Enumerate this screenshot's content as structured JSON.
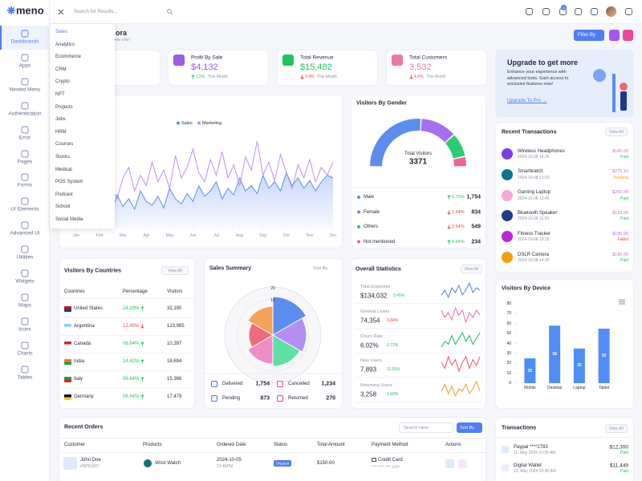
{
  "brand": "meno",
  "search_placeholder": "Search for Results...",
  "cart_badge": 4,
  "sidebar": [
    "Dashboards",
    "Apps",
    "Nested Menu",
    "Authentication",
    "Error",
    "Pages",
    "Forms",
    "UI Elements",
    "Advanced UI",
    "Utilities",
    "Widgets",
    "Maps",
    "Icons",
    "Charts",
    "Tables"
  ],
  "dashboard_menu": [
    "Sales",
    "Analytics",
    "Ecommerce",
    "CRM",
    "Crypto",
    "NFT",
    "Projects",
    "Jobs",
    "HRM",
    "Courses",
    "Stocks",
    "Medical",
    "POS System",
    "Podcast",
    "School",
    "Social Media"
  ],
  "header": {
    "title": "ora",
    "subtitle": "ew one!",
    "filter_button": "Filter By"
  },
  "stat_cards": [
    {
      "title": "Profit By Sale",
      "value": "$4,132",
      "change": "1.5%",
      "period": "This Month",
      "trend": "up",
      "color": "#9b5de5"
    },
    {
      "title": "Total Revenue",
      "value": "$15,482",
      "change": "3.4%",
      "period": "This Month",
      "trend": "down",
      "color": "#22c55e"
    },
    {
      "title": "Total Customers",
      "value": "3,532",
      "change": "4.5%",
      "period": "This Month",
      "trend": "down",
      "color": "#e879a6"
    }
  ],
  "upgrade": {
    "title": "Upgrade to get more",
    "text": "Enhance your experience with advanced tools. Gain access to exclusive features now!",
    "link": "Upgrade To Pro →"
  },
  "recent_transactions": {
    "title": "Recent Transactions",
    "view_all": "View All",
    "items": [
      {
        "name": "Wireless Headphones",
        "time": "2024-10-08 14:35",
        "amount": "$180.00",
        "status": "Paid"
      },
      {
        "name": "Smartwatch",
        "time": "2024-10-08 13:20",
        "amount": "$275.10",
        "status": "Pending"
      },
      {
        "name": "Gaming Laptop",
        "time": "2024-10-08 12:45",
        "amount": "$250.00",
        "status": "Paid"
      },
      {
        "name": "Bluetooth Speaker",
        "time": "2024-10-08 11:30",
        "amount": "$120.00",
        "status": "Paid"
      },
      {
        "name": "Fitness Tracker",
        "time": "2024-10-08 10:15",
        "amount": "$180.00",
        "status": "Failed"
      },
      {
        "name": "DSLR Camera",
        "time": "2024-10-08 14:35",
        "amount": "$180.00",
        "status": "Paid"
      }
    ]
  },
  "visitors_by_countries": {
    "title": "Visitors By Countries",
    "view_all": "View All",
    "columns": [
      "Countries",
      "Percentage",
      "Visitors"
    ],
    "rows": [
      {
        "country": "United States",
        "percentage": "24.23%",
        "trend": "up",
        "visitors": "32,190"
      },
      {
        "country": "Argentina",
        "percentage": "12.45%",
        "trend": "down",
        "visitors": "123,985"
      },
      {
        "country": "Canada",
        "percentage": "06.64%",
        "trend": "up",
        "visitors": "10,397"
      },
      {
        "country": "India",
        "percentage": "14.42%",
        "trend": "up",
        "visitors": "18,694"
      },
      {
        "country": "Italy",
        "percentage": "06.64%",
        "trend": "up",
        "visitors": "15,386"
      },
      {
        "country": "Germany",
        "percentage": "06.64%",
        "trend": "up",
        "visitors": "17,479"
      }
    ]
  },
  "sales_summary": {
    "title": "Sales Summary",
    "sort": "Sort By",
    "stats": [
      {
        "label": "Delivered",
        "value": "1,754"
      },
      {
        "label": "Cancelled",
        "value": "1,234"
      },
      {
        "label": "Pending",
        "value": "873"
      },
      {
        "label": "Returned",
        "value": "270"
      }
    ]
  },
  "overall_statistics": {
    "title": "Overall Statistics",
    "view_all": "View All",
    "items": [
      {
        "label": "Total Expenses",
        "value": "$134,032",
        "change": "0.45%",
        "trend": "up"
      },
      {
        "label": "General Leads",
        "value": "74,354",
        "change": "3.84%",
        "trend": "down"
      },
      {
        "label": "Churn Rate",
        "value": "6.02%",
        "change": "0.72%",
        "trend": "up"
      },
      {
        "label": "New Users",
        "value": "7,893",
        "change": "11.05%",
        "trend": "up"
      },
      {
        "label": "Returning Users",
        "value": "3,258",
        "change": "1.69%",
        "trend": "up"
      }
    ]
  },
  "recent_orders": {
    "title": "Recent Orders",
    "search": "Search Here",
    "sort": "Sort By",
    "columns": [
      "Customer",
      "Products",
      "Ordered Date",
      "Status",
      "Total Amount",
      "Payment Method",
      "Actions"
    ],
    "rows": [
      {
        "name": "John Doe",
        "id": "#SPK1007",
        "product": "Wrist Watch",
        "date": "2024-10-05",
        "time": "12:45PM",
        "status": "Shipped",
        "amount": "$150.00",
        "method": "Credit Card",
        "card": "**** **** **** 1234"
      }
    ]
  },
  "transactions": {
    "title": "Transactions",
    "view_all": "View All",
    "items": [
      {
        "name": "Paypal ****2783",
        "date": "11, May 2024 10:35 AM",
        "amount": "$12,300",
        "status": "Paid"
      },
      {
        "name": "Digital Wallet",
        "date": "13, May 2024 10:30 AM",
        "amount": "$11,449",
        "status": "Paid"
      }
    ]
  },
  "chart_data": [
    {
      "type": "line",
      "x": [
        0,
        0.25,
        0.5,
        0.75,
        1,
        1.25,
        1.5,
        1.75,
        2,
        2.25,
        2.5,
        2.75,
        3,
        3.25,
        3.5,
        3.75,
        4,
        4.25,
        4.5,
        4.75,
        5,
        5.25,
        5.5,
        5.75,
        6,
        6.25,
        6.5,
        6.75,
        7,
        7.25,
        7.5,
        7.75,
        8,
        8.25,
        8.5,
        8.75,
        9,
        9.25,
        9.5,
        9.75,
        10,
        10.25,
        10.5,
        10.75,
        11
      ],
      "xlim": [
        0,
        11
      ],
      "xticks": [
        {
          "value": 0,
          "label": "Jan"
        },
        {
          "value": 1,
          "label": "Feb"
        },
        {
          "value": 2,
          "label": "Mar"
        },
        {
          "value": 3,
          "label": "Apr"
        },
        {
          "value": 4,
          "label": "May"
        },
        {
          "value": 5,
          "label": "Jun"
        },
        {
          "value": 6,
          "label": "Jul"
        },
        {
          "value": 7,
          "label": "Aug"
        },
        {
          "value": 8,
          "label": "Sep"
        },
        {
          "value": 9,
          "label": "Oct"
        },
        {
          "value": 10,
          "label": "Nov"
        },
        {
          "value": 11,
          "label": "Dec"
        }
      ],
      "series": [
        {
          "name": "Sales",
          "color": "#5b8def",
          "values": [
            30,
            35,
            28,
            40,
            33,
            38,
            30,
            45,
            36,
            42,
            34,
            48,
            40,
            37,
            44,
            35,
            50,
            42,
            38,
            46,
            40,
            52,
            44,
            48,
            55,
            42,
            50,
            45,
            58,
            48,
            52,
            46,
            60,
            50,
            55,
            48,
            62,
            52,
            58,
            50,
            56,
            48,
            55,
            60,
            58
          ]
        },
        {
          "name": "Marketing",
          "color": "#c58cf0",
          "values": [
            35,
            48,
            40,
            55,
            45,
            62,
            50,
            42,
            58,
            66,
            48,
            60,
            52,
            70,
            55,
            64,
            50,
            75,
            58,
            66,
            80,
            62,
            55,
            72,
            60,
            78,
            58,
            68,
            52,
            74,
            64,
            86,
            60,
            70,
            56,
            76,
            62,
            50,
            68,
            58,
            72,
            55,
            66,
            60,
            70
          ]
        }
      ]
    },
    {
      "type": "semi-donut",
      "title": "Visitors By Gender",
      "center_label": "Total Visitors",
      "total": 3371,
      "categories": [
        "Male",
        "Female",
        "Others",
        "Not mentioned"
      ],
      "values": [
        1754,
        834,
        549,
        234
      ],
      "value_labels": [
        "1,754",
        "834",
        "549",
        "234"
      ],
      "changes": [
        "0.75%",
        "1.64%",
        "2.64%",
        "0.64%"
      ],
      "trends": [
        "up",
        "down",
        "down",
        "up"
      ],
      "colors": [
        "#5b8def",
        "#a66ef0",
        "#2ecc71",
        "#f06292"
      ]
    },
    {
      "type": "polar",
      "values": [
        16,
        14,
        13,
        12,
        10,
        12
      ],
      "colors": [
        "#5b8def",
        "#b28ff0",
        "#5fe0a3",
        "#f08cc8",
        "#ee6b7a",
        "#f5a25a"
      ],
      "rlim": [
        0,
        20
      ],
      "rticks": [
        15,
        20
      ]
    },
    {
      "type": "bar",
      "title": "Visitors By Device",
      "categories": [
        "Mobile",
        "Desktop",
        "Laptop",
        "Tablet"
      ],
      "values": [
        25,
        58,
        35,
        55
      ],
      "color": "#4f8ef7",
      "ylim": [
        0,
        80
      ],
      "yticks": [
        0,
        10,
        20,
        30,
        40,
        50,
        60,
        70,
        80
      ]
    },
    {
      "type": "sparkline",
      "color": "#5b8def",
      "values": [
        5,
        7,
        4,
        8,
        6,
        9,
        5,
        7,
        10,
        6,
        8,
        7
      ]
    },
    {
      "type": "sparkline",
      "color": "#e879c0",
      "values": [
        8,
        5,
        7,
        4,
        9,
        6,
        8,
        3,
        7,
        5,
        8,
        6
      ]
    },
    {
      "type": "sparkline",
      "color": "#22c55e",
      "values": [
        4,
        6,
        5,
        8,
        5,
        7,
        9,
        6,
        8,
        5,
        7,
        9
      ]
    },
    {
      "type": "sparkline",
      "color": "#f0627a",
      "values": [
        6,
        4,
        8,
        5,
        7,
        3,
        6,
        8,
        4,
        7,
        5,
        8
      ]
    },
    {
      "type": "sparkline",
      "color": "#f59e42",
      "values": [
        5,
        8,
        4,
        7,
        3,
        6,
        5,
        8,
        4,
        6,
        9,
        5
      ]
    }
  ]
}
